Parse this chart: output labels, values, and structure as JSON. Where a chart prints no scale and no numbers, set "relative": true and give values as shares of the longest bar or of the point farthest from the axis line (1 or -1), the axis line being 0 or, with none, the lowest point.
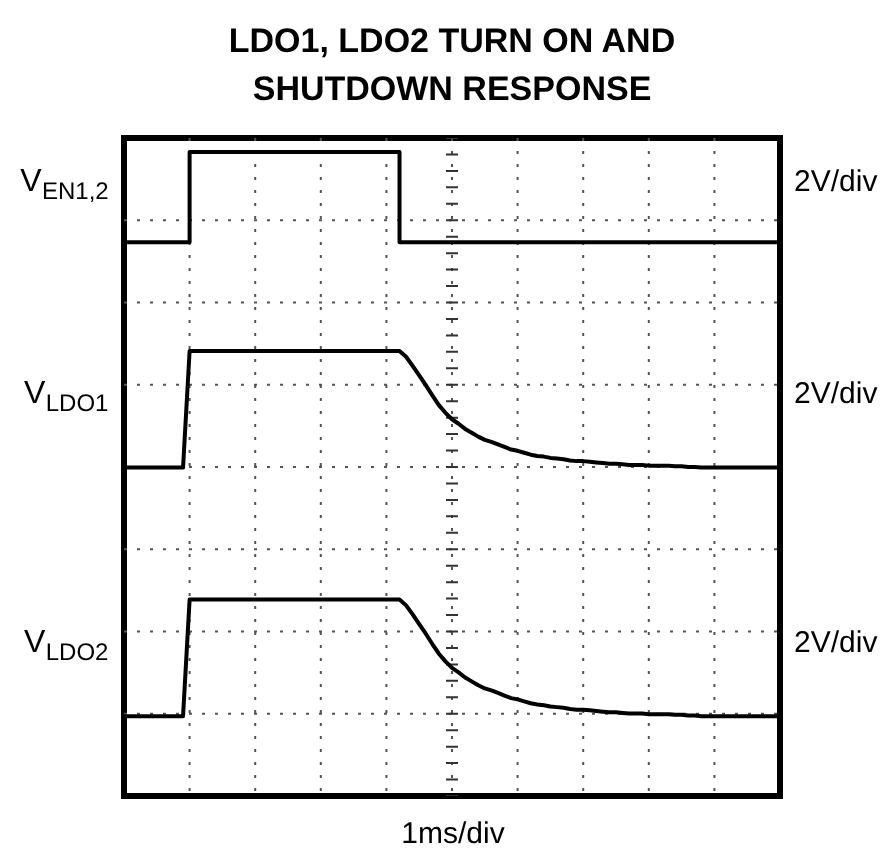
{
  "chart_data": {
    "type": "line",
    "title": "LDO1, LDO2 TURN ON AND SHUTDOWN RESPONSE",
    "xlabel": "1ms/div",
    "annotations": [
      "2V/div",
      "2V/div",
      "2V/div"
    ],
    "relative": true,
    "grid": true,
    "tick_labels": false,
    "categories": [
      null,
      null,
      null,
      null,
      null,
      null,
      null,
      null,
      null,
      null,
      null,
      null,
      null,
      null,
      null,
      null,
      null,
      null,
      null,
      null,
      null,
      null,
      null,
      null,
      null,
      null,
      null,
      null,
      null,
      null,
      null,
      null,
      null,
      null,
      null,
      null,
      null,
      null,
      null,
      null,
      null,
      null,
      null,
      null,
      null,
      null,
      null,
      null,
      null,
      null,
      null,
      null,
      null,
      null,
      null,
      null,
      null,
      null,
      null,
      null,
      null,
      null,
      null,
      null,
      null,
      null,
      null,
      null,
      null,
      null,
      null,
      null,
      null,
      null,
      null,
      null,
      null,
      null,
      null,
      null,
      null,
      null,
      null,
      null,
      null,
      null,
      null,
      null,
      null,
      null,
      null,
      null,
      null,
      null,
      null,
      null,
      null,
      null,
      null,
      null,
      null
    ],
    "series": [
      {
        "name": "V$_{EN1,2}$",
        "type": "step",
        "color": "#000000",
        "values": [
          0.86,
          0.86,
          0.86,
          0.86,
          0.86,
          0.86,
          0.86,
          0.86,
          0.86,
          0.86,
          1,
          1,
          1,
          1,
          1,
          1,
          1,
          1,
          1,
          1,
          1,
          1,
          1,
          1,
          1,
          1,
          1,
          1,
          1,
          1,
          1,
          1,
          1,
          1,
          1,
          1,
          1,
          1,
          1,
          1,
          1,
          1,
          0.86,
          0.86,
          0.86,
          0.86,
          0.86,
          0.86,
          0.86,
          0.86,
          0.86,
          0.86,
          0.86,
          0.86,
          0.86,
          0.86,
          0.86,
          0.86,
          0.86,
          0.86,
          0.86,
          0.86,
          0.86,
          0.86,
          0.86,
          0.86,
          0.86,
          0.86,
          0.86,
          0.86,
          0.86,
          0.86,
          0.86,
          0.86,
          0.86,
          0.86,
          0.86,
          0.86,
          0.86,
          0.86,
          0.86,
          0.86,
          0.86,
          0.86,
          0.86,
          0.86,
          0.86,
          0.86,
          0.86,
          0.86,
          0.86,
          0.86,
          0.86,
          0.86,
          0.86,
          0.86,
          0.86,
          0.86,
          0.86,
          0.86,
          0.86
        ]
      },
      {
        "name": "V$_{LDO1}$",
        "color": "#000000",
        "values": [
          0.51,
          0.51,
          0.51,
          0.51,
          0.51,
          0.51,
          0.51,
          0.51,
          0.51,
          0.51,
          0.691,
          0.691,
          0.691,
          0.691,
          0.691,
          0.691,
          0.691,
          0.691,
          0.691,
          0.691,
          0.691,
          0.691,
          0.691,
          0.691,
          0.691,
          0.691,
          0.691,
          0.691,
          0.691,
          0.691,
          0.691,
          0.691,
          0.691,
          0.691,
          0.691,
          0.691,
          0.691,
          0.691,
          0.691,
          0.691,
          0.691,
          0.691,
          0.691,
          0.682,
          0.668,
          0.653,
          0.638,
          0.622,
          0.607,
          0.595,
          0.585,
          0.578,
          0.57,
          0.564,
          0.558,
          0.553,
          0.55,
          0.546,
          0.542,
          0.538,
          0.536,
          0.533,
          0.53,
          0.528,
          0.527,
          0.525,
          0.524,
          0.523,
          0.521,
          0.52,
          0.52,
          0.519,
          0.518,
          0.517,
          0.516,
          0.516,
          0.515,
          0.514,
          0.514,
          0.514,
          0.513,
          0.513,
          0.513,
          0.513,
          0.512,
          0.512,
          0.511,
          0.511,
          0.51,
          0.51,
          0.51,
          0.51,
          0.51,
          0.51,
          0.51,
          0.51,
          0.51,
          0.51,
          0.51,
          0.51,
          0.51
        ]
      },
      {
        "name": "V$_{LDO2}$",
        "color": "#000000",
        "values": [
          0.124,
          0.124,
          0.124,
          0.124,
          0.124,
          0.124,
          0.124,
          0.124,
          0.124,
          0.124,
          0.305,
          0.305,
          0.305,
          0.305,
          0.305,
          0.305,
          0.305,
          0.305,
          0.305,
          0.305,
          0.305,
          0.305,
          0.305,
          0.305,
          0.305,
          0.305,
          0.305,
          0.305,
          0.305,
          0.305,
          0.305,
          0.305,
          0.305,
          0.305,
          0.305,
          0.305,
          0.305,
          0.305,
          0.305,
          0.305,
          0.305,
          0.305,
          0.305,
          0.296,
          0.282,
          0.267,
          0.252,
          0.236,
          0.221,
          0.209,
          0.199,
          0.192,
          0.184,
          0.178,
          0.172,
          0.167,
          0.164,
          0.16,
          0.156,
          0.152,
          0.15,
          0.147,
          0.144,
          0.142,
          0.141,
          0.139,
          0.138,
          0.137,
          0.135,
          0.134,
          0.134,
          0.133,
          0.132,
          0.131,
          0.13,
          0.13,
          0.129,
          0.128,
          0.128,
          0.128,
          0.127,
          0.127,
          0.127,
          0.127,
          0.126,
          0.126,
          0.125,
          0.125,
          0.124,
          0.124,
          0.124,
          0.124,
          0.124,
          0.124,
          0.124,
          0.124,
          0.124,
          0.124,
          0.124,
          0.124,
          0.124
        ]
      }
    ]
  }
}
